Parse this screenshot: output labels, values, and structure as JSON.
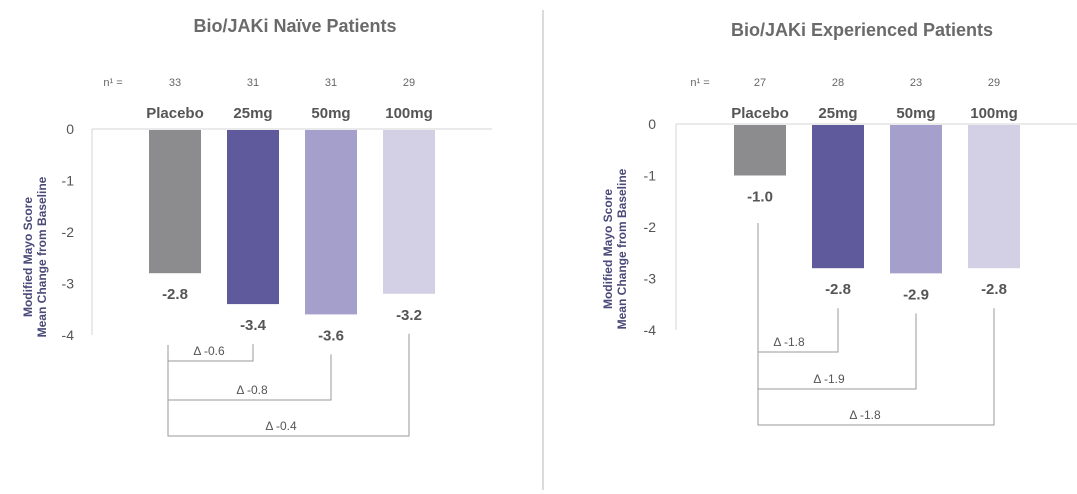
{
  "divider_color": "#cfcfcf",
  "chart_data": [
    {
      "type": "bar",
      "title": "Bio/JAKi Naïve Patients",
      "ylabel_lines": [
        "Modified Mayo Score",
        "Mean Change from Baseline"
      ],
      "n_label": "n¹ =",
      "n_values": [
        33,
        31,
        31,
        29
      ],
      "categories": [
        "Placebo",
        "25mg",
        "50mg",
        "100mg"
      ],
      "values": [
        -2.8,
        -3.4,
        -3.6,
        -3.2
      ],
      "value_labels": [
        "-2.8",
        "-3.4",
        "-3.6",
        "-3.2"
      ],
      "colors": [
        "#8c8c8f",
        "#5e5a9c",
        "#a49fcb",
        "#d3d0e6"
      ],
      "yticks": [
        "0",
        "-1",
        "-2",
        "-3",
        "-4"
      ],
      "ylim": [
        -4,
        0
      ],
      "deltas": [
        {
          "label": "Δ -0.6",
          "from": 0,
          "to": 1
        },
        {
          "label": "Δ -0.8",
          "from": 0,
          "to": 2
        },
        {
          "label": "Δ -0.4",
          "from": 0,
          "to": 3
        }
      ]
    },
    {
      "type": "bar",
      "title": "Bio/JAKi Experienced Patients",
      "ylabel_lines": [
        "Modified Mayo Score",
        "Mean Change from Baseline"
      ],
      "n_label": "n¹ =",
      "n_values": [
        27,
        28,
        23,
        29
      ],
      "categories": [
        "Placebo",
        "25mg",
        "50mg",
        "100mg"
      ],
      "values": [
        -1.0,
        -2.8,
        -2.9,
        -2.8
      ],
      "value_labels": [
        "-1.0",
        "-2.8",
        "-2.9",
        "-2.8"
      ],
      "colors": [
        "#8c8c8f",
        "#5e5a9c",
        "#a49fcb",
        "#d3d0e6"
      ],
      "yticks": [
        "0",
        "-1",
        "-2",
        "-3",
        "-4"
      ],
      "ylim": [
        -4,
        0
      ],
      "deltas": [
        {
          "label": "Δ -1.8",
          "from": 0,
          "to": 1
        },
        {
          "label": "Δ -1.9",
          "from": 0,
          "to": 2
        },
        {
          "label": "Δ -1.8",
          "from": 0,
          "to": 3
        }
      ]
    }
  ]
}
